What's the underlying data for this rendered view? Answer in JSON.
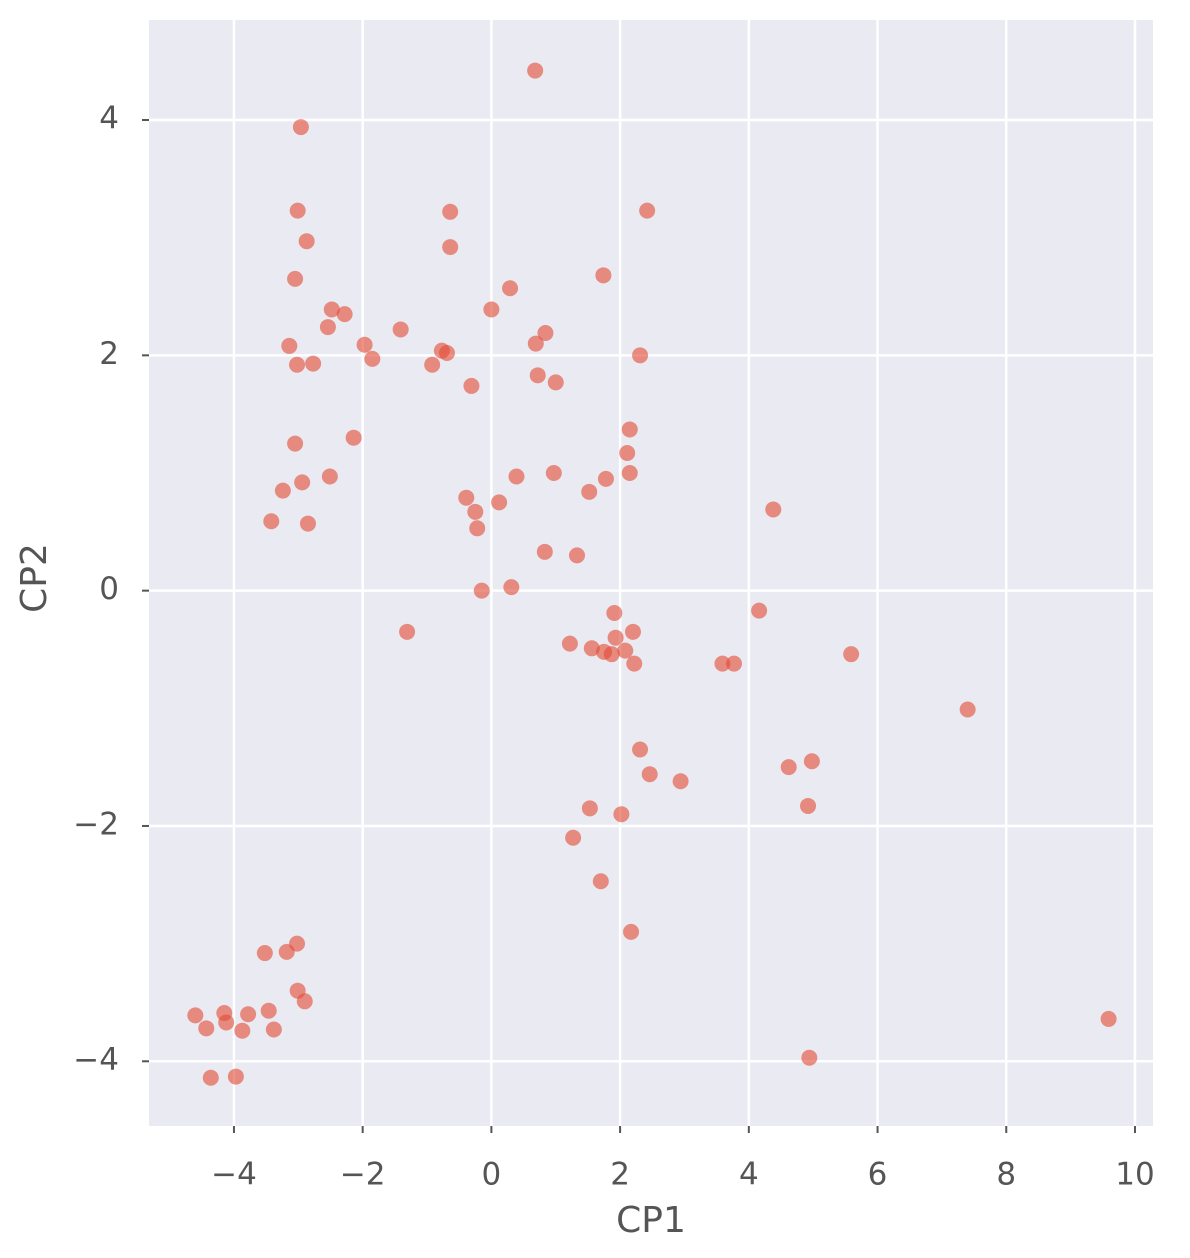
{
  "chart_data": {
    "type": "scatter",
    "x_label": "CP1",
    "y_label": "CP2",
    "x": [
      0.68,
      -2.96,
      -3.01,
      -0.64,
      2.42,
      -2.87,
      -0.64,
      1.74,
      -3.05,
      0.29,
      -2.48,
      0.0,
      -2.28,
      -2.54,
      -1.41,
      0.84,
      -3.14,
      -1.97,
      0.69,
      -0.77,
      -0.69,
      2.31,
      -1.85,
      -3.02,
      -2.77,
      -0.92,
      0.72,
      1.0,
      -0.31,
      2.15,
      -2.14,
      -3.05,
      2.11,
      0.97,
      2.15,
      0.39,
      -2.51,
      1.78,
      -2.94,
      -3.24,
      1.52,
      -0.39,
      0.12,
      4.38,
      -0.25,
      -3.42,
      -2.85,
      -0.22,
      0.83,
      1.33,
      0.31,
      -0.15,
      4.16,
      1.91,
      -1.31,
      2.2,
      1.93,
      1.22,
      1.56,
      2.08,
      1.75,
      1.87,
      5.59,
      2.22,
      3.59,
      3.77,
      7.4,
      2.31,
      4.98,
      4.62,
      2.46,
      2.94,
      1.53,
      4.92,
      2.02,
      1.27,
      1.7,
      2.17,
      -3.02,
      -3.52,
      -3.18,
      -3.01,
      -2.9,
      -3.46,
      -4.6,
      -4.15,
      -3.78,
      -4.12,
      -4.43,
      -3.87,
      -3.38,
      9.59,
      4.94,
      -4.36,
      -3.97
    ],
    "y": [
      4.42,
      3.94,
      3.23,
      3.22,
      3.23,
      2.97,
      2.92,
      2.68,
      2.65,
      2.57,
      2.39,
      2.39,
      2.35,
      2.24,
      2.22,
      2.19,
      2.08,
      2.09,
      2.1,
      2.04,
      2.02,
      2.0,
      1.97,
      1.92,
      1.93,
      1.92,
      1.83,
      1.77,
      1.74,
      1.37,
      1.3,
      1.25,
      1.17,
      1.0,
      1.0,
      0.97,
      0.97,
      0.95,
      0.92,
      0.85,
      0.84,
      0.79,
      0.75,
      0.69,
      0.67,
      0.59,
      0.57,
      0.53,
      0.33,
      0.3,
      0.03,
      0.0,
      -0.17,
      -0.19,
      -0.35,
      -0.35,
      -0.4,
      -0.45,
      -0.49,
      -0.51,
      -0.52,
      -0.54,
      -0.54,
      -0.62,
      -0.62,
      -0.62,
      -1.01,
      -1.35,
      -1.45,
      -1.5,
      -1.56,
      -1.62,
      -1.85,
      -1.83,
      -1.9,
      -2.1,
      -2.47,
      -2.9,
      -3.0,
      -3.08,
      -3.07,
      -3.4,
      -3.49,
      -3.57,
      -3.61,
      -3.59,
      -3.6,
      -3.67,
      -3.72,
      -3.74,
      -3.73,
      -3.64,
      -3.97,
      -4.14,
      -4.13
    ],
    "color": "#E24A33",
    "alpha": 0.6,
    "xlim": [
      -5.32,
      10.28
    ],
    "ylim": [
      -4.55,
      4.85
    ],
    "xticks": [
      {
        "value": -4,
        "label": "−4"
      },
      {
        "value": -2,
        "label": "−2"
      },
      0,
      2,
      4,
      6,
      8,
      10
    ],
    "yticks": [
      {
        "value": -4,
        "label": "−4"
      },
      {
        "value": -2,
        "label": "−2"
      },
      0,
      2,
      4
    ],
    "grid": true
  }
}
